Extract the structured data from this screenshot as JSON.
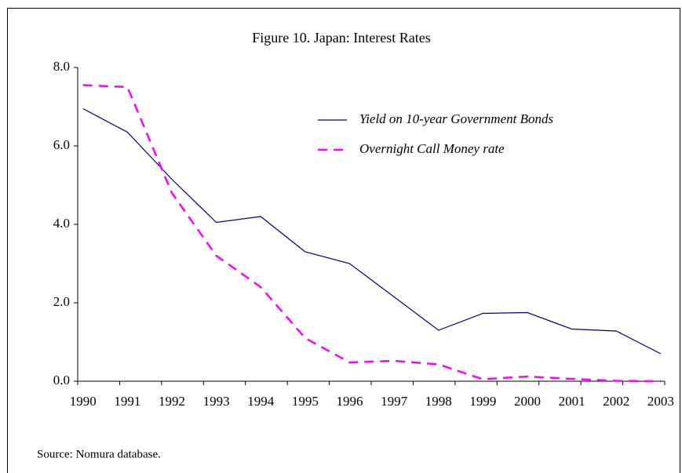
{
  "chart_data": {
    "type": "line",
    "title": "Figure 10. Japan: Interest Rates",
    "source": "Source: Nomura database.",
    "categories": [
      "1990",
      "1991",
      "1992",
      "1993",
      "1994",
      "1995",
      "1996",
      "1997",
      "1998",
      "1999",
      "2000",
      "2001",
      "2002",
      "2003"
    ],
    "series": [
      {
        "name": "Yield on 10-year Government Bonds",
        "color": "#000080",
        "dash": "solid",
        "values": [
          6.95,
          6.35,
          5.15,
          4.05,
          4.2,
          3.3,
          3.0,
          2.15,
          1.3,
          1.73,
          1.75,
          1.33,
          1.28,
          0.7
        ]
      },
      {
        "name": "Overnight Call Money rate",
        "color": "#ff00ff",
        "dash": "dashed",
        "values": [
          7.55,
          7.5,
          4.8,
          3.2,
          2.4,
          1.1,
          0.48,
          0.52,
          0.43,
          0.05,
          0.12,
          0.06,
          0.01,
          0.0
        ]
      }
    ],
    "ylim": [
      0,
      8
    ],
    "yticks": [
      {
        "value": 0,
        "label": "0.0"
      },
      {
        "value": 2,
        "label": "2.0"
      },
      {
        "value": 4,
        "label": "4.0"
      },
      {
        "value": 6,
        "label": "6.0"
      },
      {
        "value": 8,
        "label": "8.0"
      }
    ],
    "grid": false
  }
}
